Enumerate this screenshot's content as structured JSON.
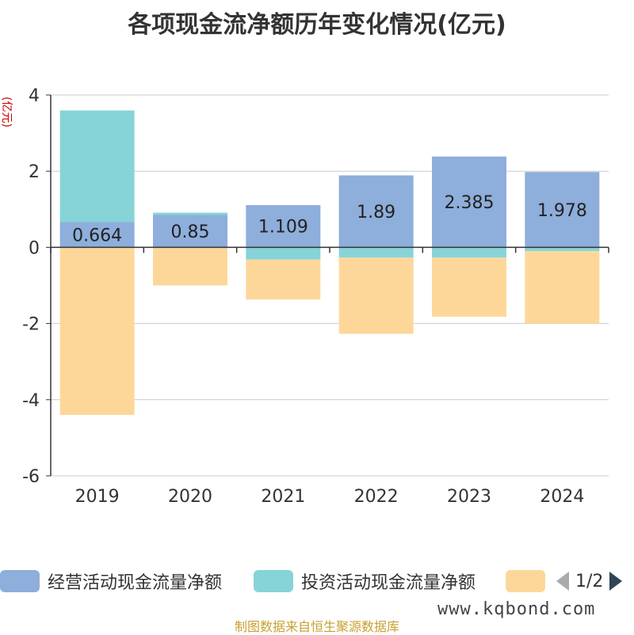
{
  "title": "各项现金流净额历年变化情况(亿元)",
  "footer": "制图数据来自恒生聚源数据库",
  "watermark": "www.kqbond.com",
  "pager": {
    "text": "1/2",
    "prev_icon": "triangle-left-icon",
    "next_icon": "triangle-right-icon"
  },
  "chart_data": {
    "type": "bar",
    "stacked": true,
    "ylabel": "(亿元)",
    "ylim": [
      -6,
      4
    ],
    "yticks": [
      -6,
      -4,
      -2,
      0,
      2,
      4
    ],
    "grid": true,
    "legend_position": "bottom",
    "categories": [
      "2019",
      "2020",
      "2021",
      "2022",
      "2023",
      "2024"
    ],
    "series": [
      {
        "name": "经营活动现金流量净额",
        "color": "#8eaedb",
        "values": [
          0.664,
          0.85,
          1.109,
          1.89,
          2.385,
          1.978
        ],
        "labels": [
          "0.664",
          "0.85",
          "1.109",
          "1.89",
          "2.385",
          "1.978"
        ]
      },
      {
        "name": "投资活动现金流量净额",
        "color": "#86d4d8",
        "values": [
          2.93,
          0.06,
          -0.32,
          -0.27,
          -0.27,
          -0.1
        ]
      },
      {
        "name": "",
        "color": "#fdd79a",
        "values": [
          -4.4,
          -1.0,
          -1.05,
          -2.0,
          -1.55,
          -1.9
        ]
      }
    ]
  }
}
